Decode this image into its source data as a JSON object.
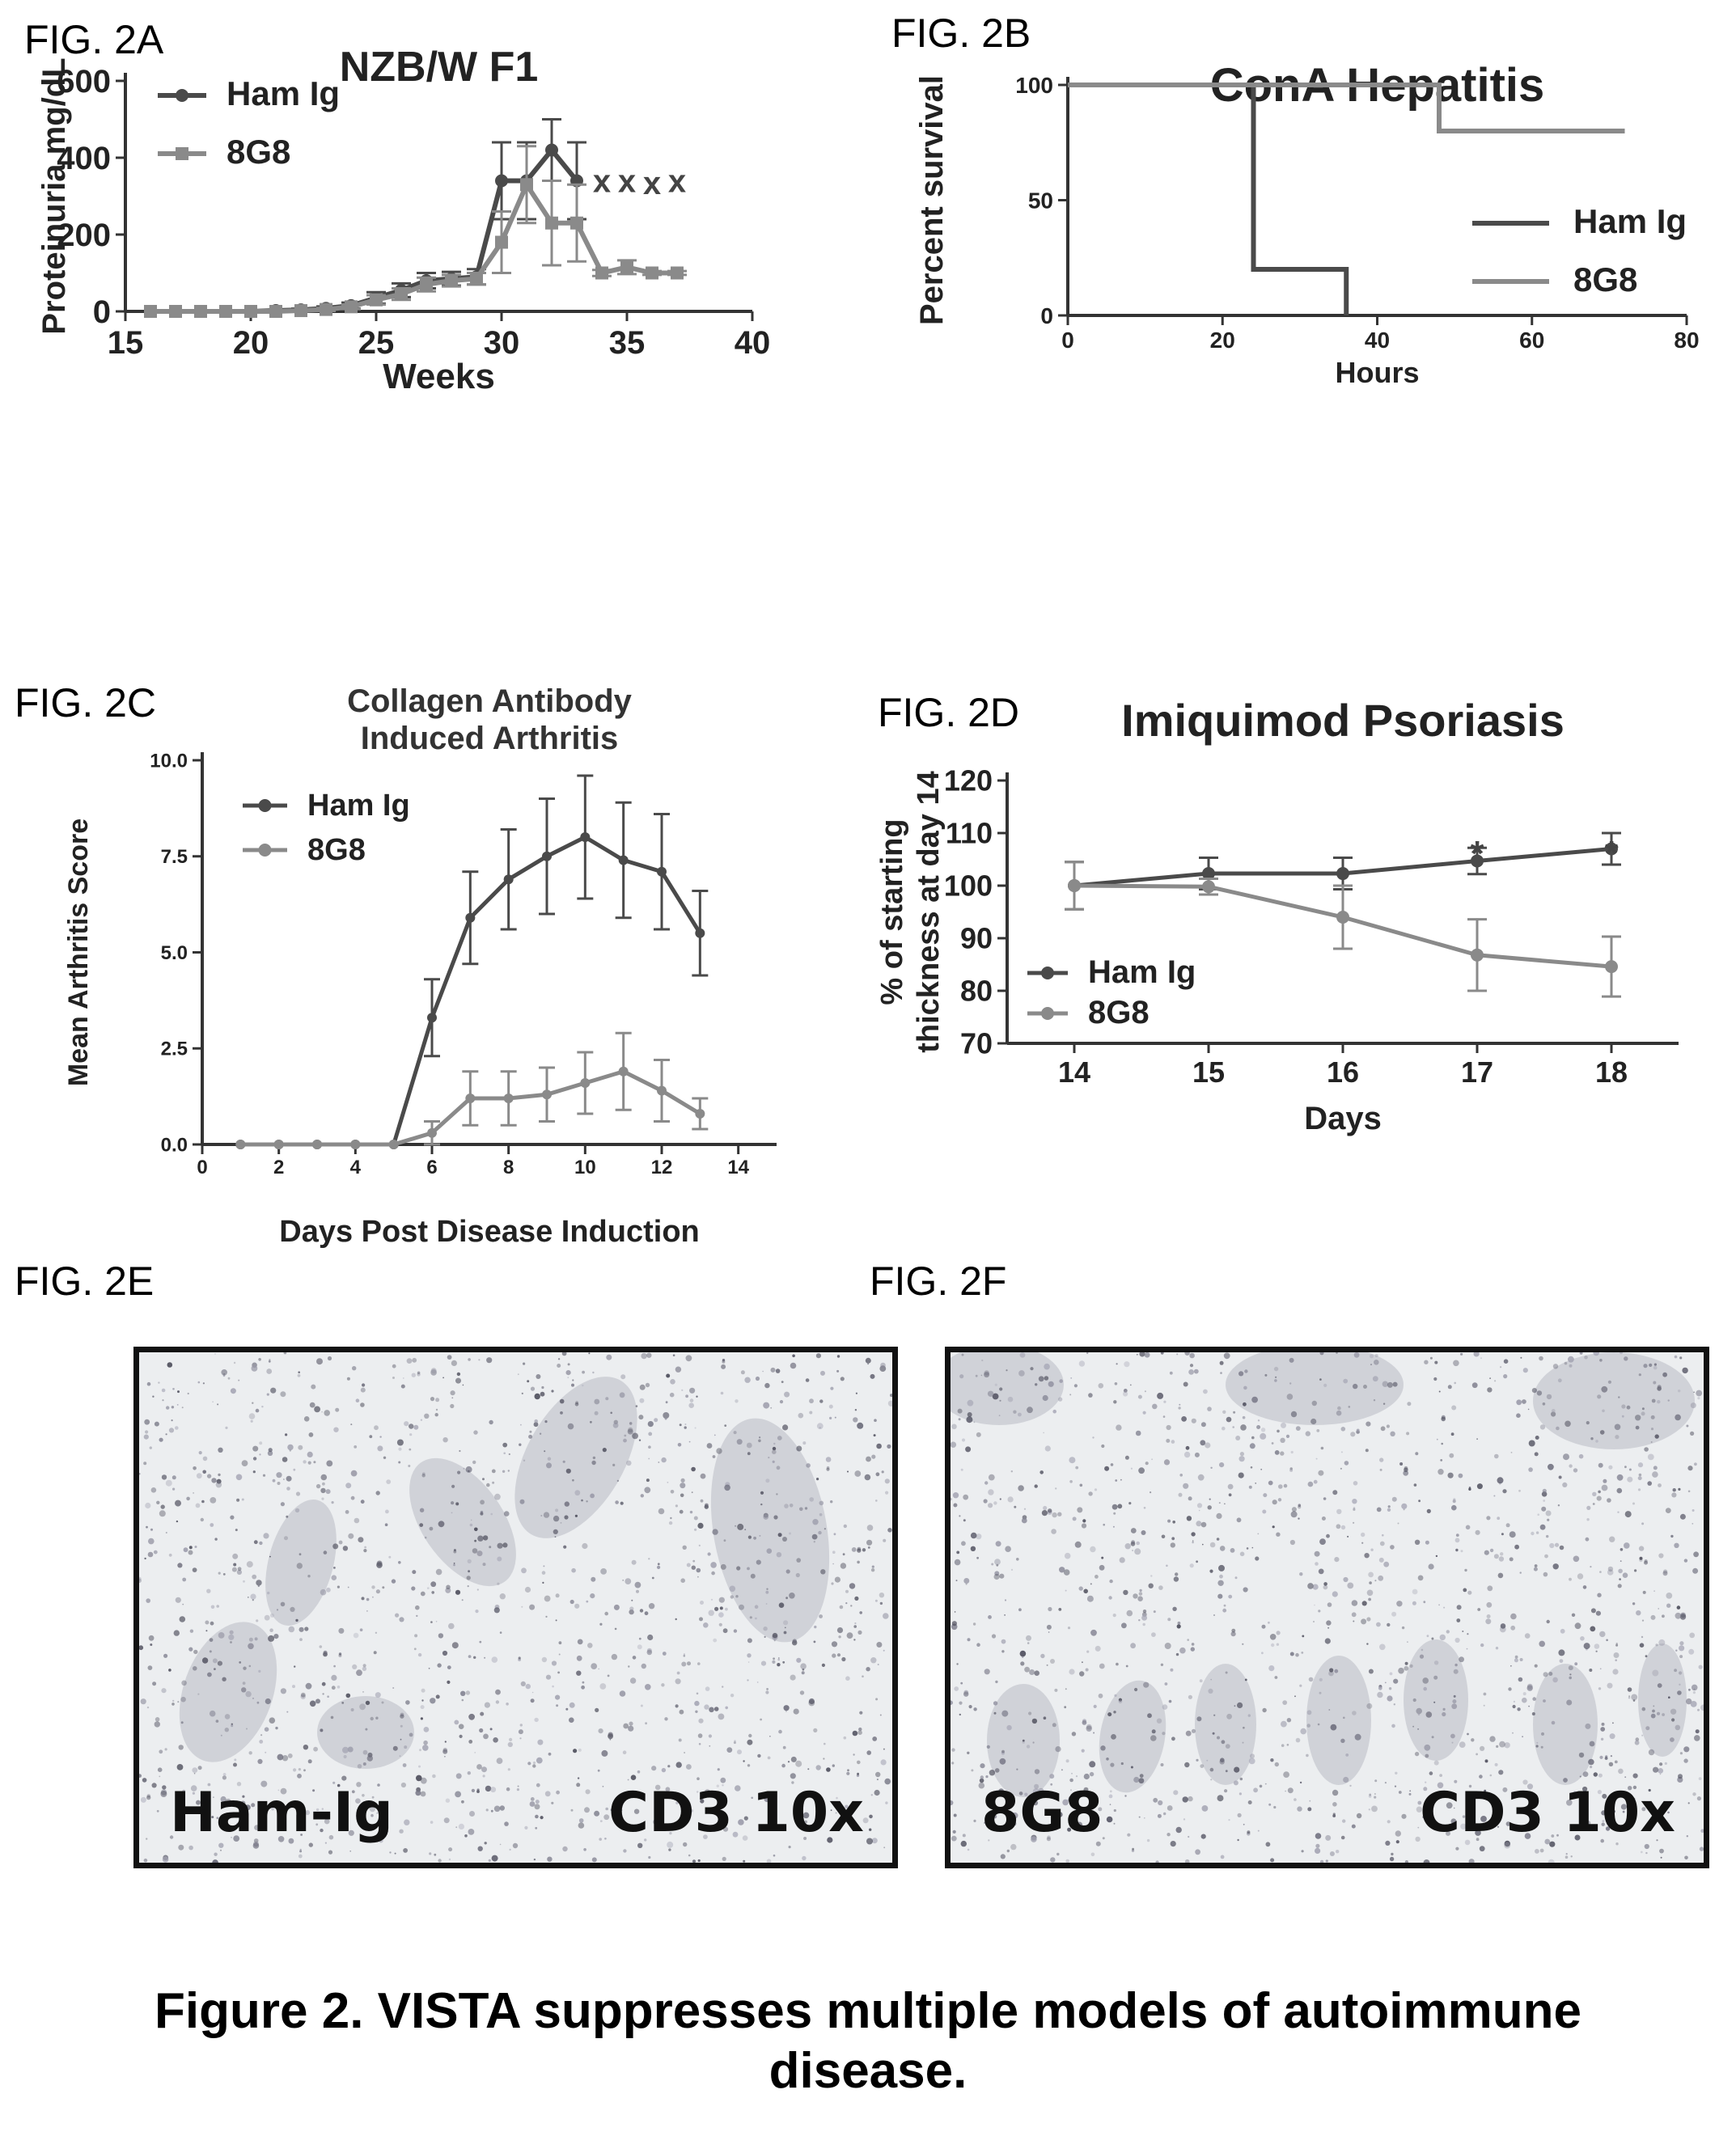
{
  "figure_labels": {
    "a": "FIG. 2A",
    "b": "FIG. 2B",
    "c": "FIG. 2C",
    "d": "FIG. 2D",
    "e": "FIG. 2E",
    "f": "FIG. 2F"
  },
  "caption": "Figure 2. VISTA suppresses multiple models of autoimmune disease.",
  "colors": {
    "ham": "#4a4a4a",
    "g8": "#8a8a8a",
    "axis": "#333333"
  },
  "micrographs": [
    {
      "left_label": "Ham-Ig",
      "right_label": "CD3 10x"
    },
    {
      "left_label": "8G8",
      "right_label": "CD3 10x"
    }
  ],
  "chart_data": [
    {
      "id": "a",
      "type": "line",
      "title": "NZB/W F1",
      "xlabel": "Weeks",
      "ylabel": "Proteinuria mg/dL",
      "xlim": [
        15,
        40
      ],
      "ylim": [
        0,
        600
      ],
      "xticks": [
        15,
        20,
        25,
        30,
        35,
        40
      ],
      "yticks": [
        0,
        200,
        400,
        600
      ],
      "legend_position": "top-left",
      "series": [
        {
          "name": "Ham Ig",
          "color": "#4a4a4a",
          "marker": "circle",
          "x": [
            16,
            17,
            18,
            19,
            20,
            21,
            22,
            23,
            24,
            25,
            26,
            27,
            28,
            29,
            30,
            31,
            32,
            33
          ],
          "y": [
            0,
            0,
            0,
            0,
            0,
            2,
            4,
            8,
            15,
            35,
            55,
            80,
            85,
            90,
            340,
            340,
            420,
            340
          ],
          "err": [
            0,
            0,
            0,
            0,
            0,
            2,
            3,
            5,
            8,
            15,
            18,
            20,
            18,
            20,
            100,
            100,
            80,
            100
          ]
        },
        {
          "name": "8G8",
          "color": "#8a8a8a",
          "marker": "square",
          "x": [
            16,
            17,
            18,
            19,
            20,
            21,
            22,
            23,
            24,
            25,
            26,
            27,
            28,
            29,
            30,
            31,
            32,
            33,
            34,
            35,
            36,
            37
          ],
          "y": [
            0,
            0,
            0,
            0,
            0,
            0,
            2,
            5,
            12,
            30,
            45,
            70,
            80,
            85,
            180,
            330,
            230,
            230,
            100,
            115,
            100,
            100
          ],
          "err": [
            0,
            0,
            0,
            0,
            0,
            0,
            2,
            4,
            6,
            12,
            15,
            18,
            15,
            15,
            80,
            100,
            110,
            100,
            8,
            18,
            5,
            5
          ]
        }
      ],
      "annotations": [
        {
          "text": "x",
          "x": 34,
          "y": 340
        },
        {
          "text": "x",
          "x": 35,
          "y": 340
        },
        {
          "text": "x",
          "x": 36,
          "y": 335
        },
        {
          "text": "x",
          "x": 37,
          "y": 340
        }
      ]
    },
    {
      "id": "b",
      "type": "line",
      "title": "ConA Hepatitis",
      "xlabel": "Hours",
      "ylabel": "Percent survival",
      "xlim": [
        0,
        80
      ],
      "ylim": [
        0,
        100
      ],
      "xticks": [
        0,
        20,
        40,
        60,
        80
      ],
      "yticks": [
        0,
        50,
        100
      ],
      "step": true,
      "legend_position": "right",
      "series": [
        {
          "name": "Ham Ig",
          "color": "#4a4a4a",
          "x": [
            0,
            24,
            24,
            36,
            36
          ],
          "y": [
            100,
            100,
            20,
            20,
            0
          ]
        },
        {
          "name": "8G8",
          "color": "#8a8a8a",
          "x": [
            0,
            48,
            48,
            72
          ],
          "y": [
            100,
            100,
            80,
            80
          ]
        }
      ]
    },
    {
      "id": "c",
      "type": "line",
      "title": "Collagen Antibody Induced Arthritis",
      "title_lines": [
        "Collagen Antibody",
        "Induced Arthritis"
      ],
      "xlabel": "Days Post Disease Induction",
      "ylabel": "Mean Arthritis Score",
      "xlim": [
        0,
        15
      ],
      "ylim": [
        0,
        10
      ],
      "xticks": [
        0,
        2,
        4,
        6,
        8,
        10,
        12,
        14
      ],
      "yticks": [
        "0.0",
        "2.5",
        "5.0",
        "7.5",
        "10.0"
      ],
      "legend_position": "top-left",
      "series": [
        {
          "name": "Ham Ig",
          "color": "#4a4a4a",
          "x": [
            1,
            2,
            3,
            4,
            5,
            6,
            7,
            8,
            9,
            10,
            11,
            12,
            13
          ],
          "y": [
            0,
            0,
            0,
            0,
            0,
            3.3,
            5.9,
            6.9,
            7.5,
            8.0,
            7.4,
            7.1,
            5.5
          ],
          "err": [
            0,
            0,
            0,
            0,
            0,
            1.0,
            1.2,
            1.3,
            1.5,
            1.6,
            1.5,
            1.5,
            1.1
          ]
        },
        {
          "name": "8G8",
          "color": "#8a8a8a",
          "x": [
            1,
            2,
            3,
            4,
            5,
            6,
            7,
            8,
            9,
            10,
            11,
            12,
            13
          ],
          "y": [
            0,
            0,
            0,
            0,
            0,
            0.3,
            1.2,
            1.2,
            1.3,
            1.6,
            1.9,
            1.4,
            0.8
          ],
          "err": [
            0,
            0,
            0,
            0,
            0,
            0.3,
            0.7,
            0.7,
            0.7,
            0.8,
            1.0,
            0.8,
            0.4
          ]
        }
      ]
    },
    {
      "id": "d",
      "type": "line",
      "title": "Imiquimod Psoriasis",
      "xlabel": "Days",
      "ylabel_lines": [
        "% of starting",
        "thickness at day 14"
      ],
      "xlim": [
        13.5,
        18.5
      ],
      "ylim": [
        70,
        120
      ],
      "xticks": [
        14,
        15,
        16,
        17,
        18
      ],
      "yticks": [
        70,
        80,
        90,
        100,
        110,
        120
      ],
      "legend_position": "bottom-left",
      "series": [
        {
          "name": "Ham Ig",
          "color": "#4a4a4a",
          "x": [
            14,
            15,
            16,
            17,
            18
          ],
          "y": [
            100,
            102.3,
            102.3,
            104.7,
            107.0
          ],
          "err": [
            4.5,
            3.0,
            3.0,
            2.5,
            3.0
          ]
        },
        {
          "name": "8G8",
          "color": "#8a8a8a",
          "x": [
            14,
            15,
            16,
            17,
            18
          ],
          "y": [
            100,
            99.8,
            94.0,
            86.8,
            84.6
          ],
          "err": [
            4.5,
            1.5,
            6.0,
            6.8,
            5.7
          ]
        }
      ],
      "annotations": [
        {
          "text": "*",
          "x": 17,
          "y": 106
        },
        {
          "text": "*",
          "x": 18,
          "y": 106
        }
      ]
    }
  ]
}
